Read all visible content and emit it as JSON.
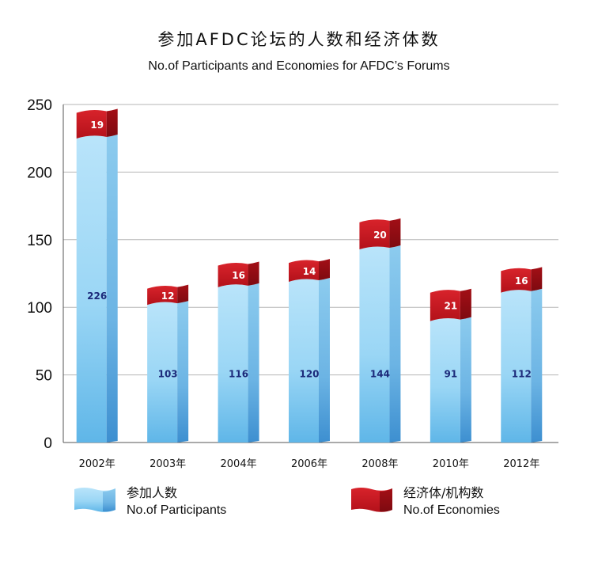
{
  "title": "参加AFDC论坛的人数和经济体数",
  "subtitle": "No.of  Participants and Economies for AFDC’s Forums",
  "legend": {
    "participants_cn": "参加人数",
    "participants_en": "No.of  Participants",
    "economies_cn": "经济体/机构数",
    "economies_en": "No.of  Economies"
  },
  "colors": {
    "participants": "#8fd0f2",
    "participants_dark": "#4a9ed8",
    "economies": "#c8141e",
    "economies_dark": "#8e0c12",
    "grid": "#b5b5b5",
    "bar_label": "#1c2a7a"
  },
  "chart_data": {
    "type": "bar",
    "stacked": true,
    "categories": [
      "2002年",
      "2003年",
      "2004年",
      "2006年",
      "2008年",
      "2010年",
      "2012年"
    ],
    "series": [
      {
        "name": "参加人数 No.of Participants",
        "values": [
          226,
          103,
          116,
          120,
          144,
          91,
          112
        ]
      },
      {
        "name": "经济体/机构数 No.of Economies",
        "values": [
          19,
          12,
          16,
          14,
          20,
          21,
          16
        ]
      }
    ],
    "title": "参加AFDC论坛的人数和经济体数",
    "subtitle": "No.of  Participants and Economies for AFDC’s Forums",
    "xlabel": "",
    "ylabel": "",
    "ylim": [
      0,
      250
    ],
    "yticks": [
      0,
      50,
      100,
      150,
      200,
      250
    ],
    "grid": true,
    "legend_position": "bottom"
  }
}
